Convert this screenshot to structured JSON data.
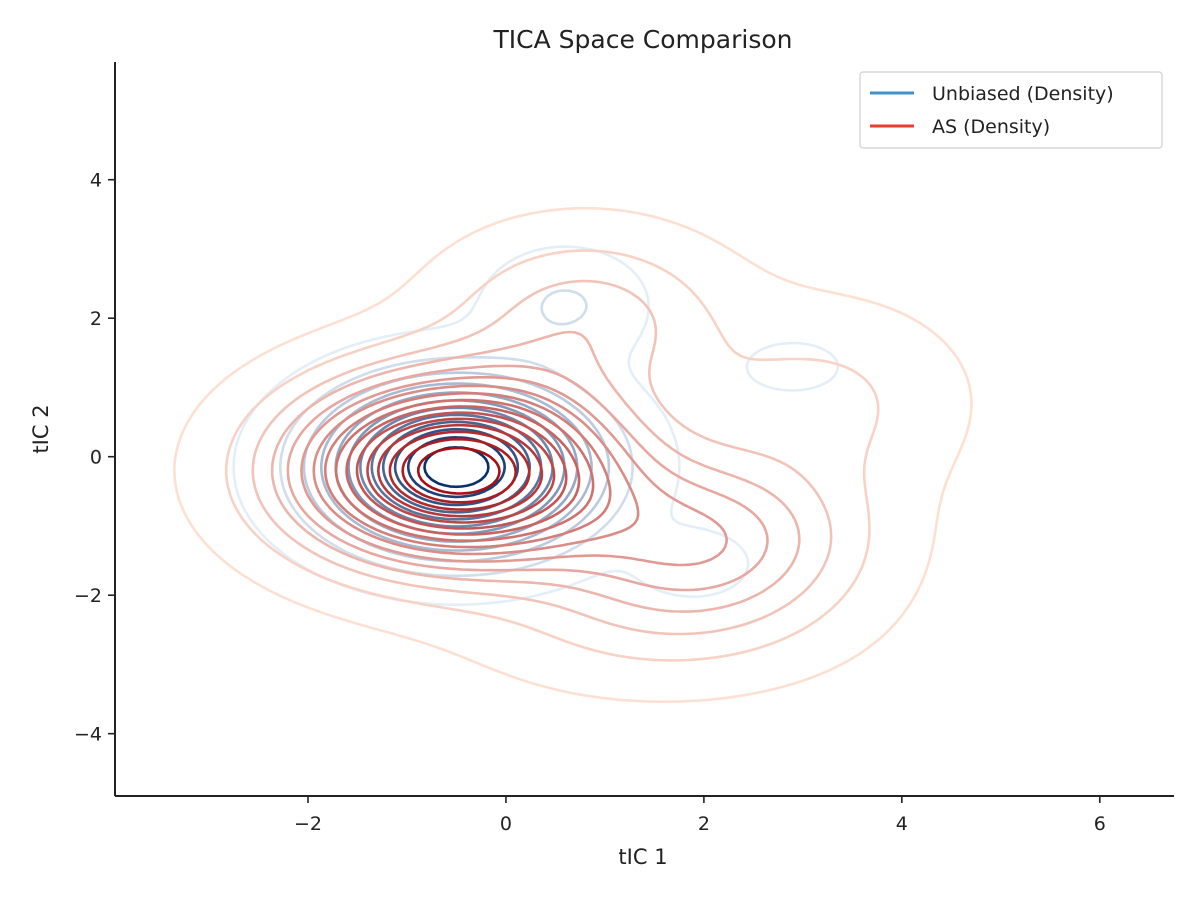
{
  "chart_data": {
    "type": "contour-kde",
    "title": "TICA Space Comparison",
    "xlabel": "tIC 1",
    "ylabel": "tIC 2",
    "xlim": [
      -3.95,
      6.75
    ],
    "ylim": [
      -4.9,
      5.7
    ],
    "xticks": [
      -2,
      0,
      2,
      4,
      6
    ],
    "yticks": [
      -4,
      -2,
      0,
      2,
      4
    ],
    "xtick_labels": [
      "−2",
      "0",
      "2",
      "4",
      "6"
    ],
    "ytick_labels": [
      "−4",
      "−2",
      "0",
      "2",
      "4"
    ],
    "grid": false,
    "legend_position": "top-right",
    "series": [
      {
        "name": "Unbiased (Density)",
        "legend_color": "#4292c6",
        "levels_color_low": "#e3eef9",
        "levels_color_high": "#08306b",
        "modes": [
          {
            "x": -0.5,
            "y": -0.15,
            "sx": 0.85,
            "sy": 0.75,
            "w": 1.0
          },
          {
            "x": 0.6,
            "y": 2.2,
            "sx": 0.5,
            "sy": 0.5,
            "w": 0.12
          },
          {
            "x": 1.9,
            "y": -1.55,
            "sx": 0.35,
            "sy": 0.3,
            "w": 0.1
          },
          {
            "x": 2.9,
            "y": 1.3,
            "sx": 0.6,
            "sy": 0.45,
            "w": 0.04
          }
        ]
      },
      {
        "name": "AS (Density)",
        "legend_color": "#ef3b2c",
        "levels_color_low": "#fee0d2",
        "levels_color_high": "#a50f15",
        "modes": [
          {
            "x": -0.5,
            "y": -0.2,
            "sx": 1.05,
            "sy": 0.85,
            "w": 1.0
          },
          {
            "x": 0.8,
            "y": 2.0,
            "sx": 0.9,
            "sy": 0.8,
            "w": 0.18
          },
          {
            "x": 2.0,
            "y": -1.2,
            "sx": 1.0,
            "sy": 0.8,
            "w": 0.3
          },
          {
            "x": 3.2,
            "y": 0.8,
            "sx": 0.9,
            "sy": 0.9,
            "w": 0.1
          },
          {
            "x": 1.5,
            "y": -2.4,
            "sx": 1.2,
            "sy": 0.7,
            "w": 0.08
          }
        ]
      }
    ]
  }
}
